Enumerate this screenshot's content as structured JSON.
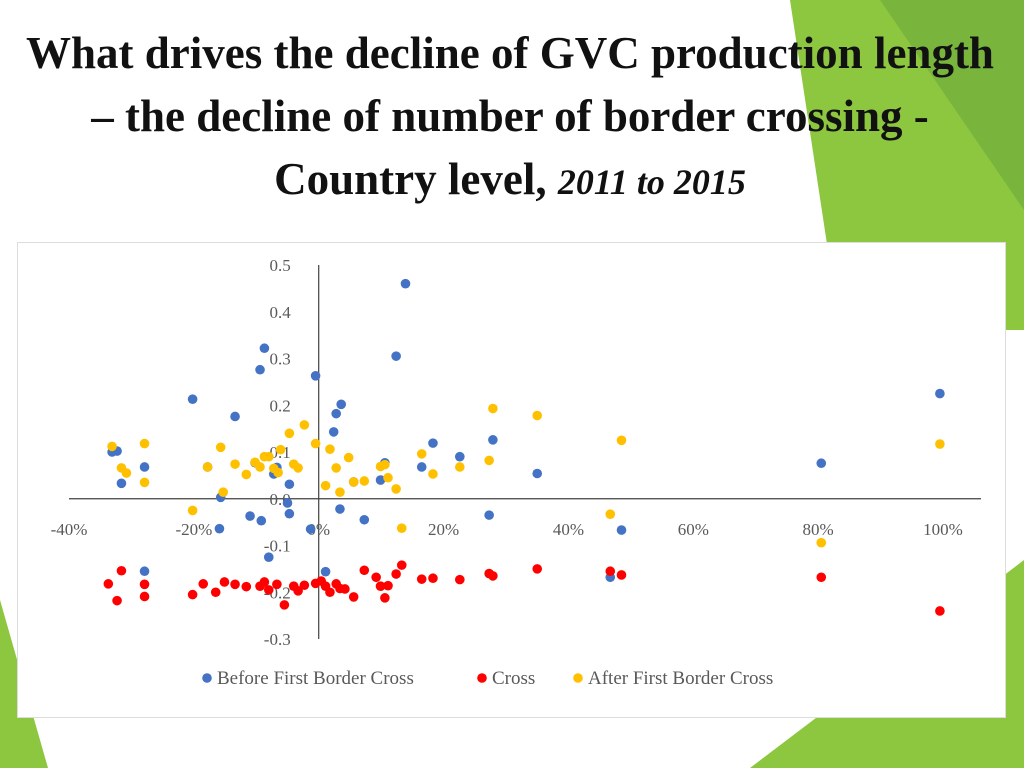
{
  "slide": {
    "title_main": "What drives the decline of GVC production length – the decline of number of border crossing -Country level, ",
    "title_years": "2011 to 2015",
    "theme_colors": [
      "#8dc63f",
      "#6aa73d",
      "#b8d96b"
    ]
  },
  "chart_data": {
    "type": "scatter",
    "title": "",
    "xlabel": "",
    "ylabel": "",
    "xlim": [
      -0.4,
      1.0
    ],
    "ylim": [
      -0.3,
      0.5
    ],
    "xticks": [
      -0.4,
      -0.2,
      0,
      0.2,
      0.4,
      0.6,
      0.8,
      1.0
    ],
    "xtick_labels": [
      "-40%",
      "-20%",
      "0%",
      "20%",
      "40%",
      "60%",
      "80%",
      "100%"
    ],
    "yticks": [
      -0.3,
      -0.2,
      -0.1,
      0.0,
      0.1,
      0.2,
      0.3,
      0.4,
      0.5
    ],
    "ytick_labels": [
      "-0.3",
      "-0.2",
      "-0.1",
      "0.0",
      "0.1",
      "0.2",
      "0.3",
      "0.4",
      "0.5"
    ],
    "grid": false,
    "legend_position": "bottom",
    "series": [
      {
        "name": "Before First Border Cross",
        "color": "#4472c4",
        "points": [
          [
            -0.331,
            0.1
          ],
          [
            -0.323,
            0.102
          ],
          [
            -0.316,
            0.033
          ],
          [
            -0.279,
            0.068
          ],
          [
            -0.279,
            -0.155
          ],
          [
            -0.202,
            0.213
          ],
          [
            -0.178,
            0.068
          ],
          [
            -0.157,
            0.003
          ],
          [
            -0.159,
            -0.064
          ],
          [
            -0.134,
            0.176
          ],
          [
            -0.11,
            -0.037
          ],
          [
            -0.102,
            0.077
          ],
          [
            -0.094,
            0.276
          ],
          [
            -0.092,
            -0.047
          ],
          [
            -0.087,
            0.322
          ],
          [
            -0.08,
            -0.125
          ],
          [
            -0.072,
            0.053
          ],
          [
            -0.067,
            0.067
          ],
          [
            -0.05,
            -0.009
          ],
          [
            -0.047,
            0.031
          ],
          [
            -0.047,
            -0.032
          ],
          [
            -0.013,
            -0.065
          ],
          [
            -0.005,
            0.263
          ],
          [
            0.011,
            -0.156
          ],
          [
            0.024,
            0.143
          ],
          [
            0.028,
            0.182
          ],
          [
            0.034,
            -0.022
          ],
          [
            0.036,
            0.202
          ],
          [
            0.056,
            0.036
          ],
          [
            0.073,
            -0.045
          ],
          [
            0.099,
            0.04
          ],
          [
            0.106,
            0.077
          ],
          [
            0.124,
            0.305
          ],
          [
            0.139,
            0.46
          ],
          [
            0.165,
            0.068
          ],
          [
            0.183,
            0.119
          ],
          [
            0.226,
            0.09
          ],
          [
            0.273,
            -0.035
          ],
          [
            0.279,
            0.126
          ],
          [
            0.35,
            0.054
          ],
          [
            0.467,
            -0.168
          ],
          [
            0.485,
            -0.067
          ],
          [
            0.805,
            0.076
          ],
          [
            0.995,
            0.225
          ]
        ]
      },
      {
        "name": "Cross",
        "color": "#ff0000",
        "points": [
          [
            -0.337,
            -0.182
          ],
          [
            -0.323,
            -0.218
          ],
          [
            -0.316,
            -0.154
          ],
          [
            -0.279,
            -0.209
          ],
          [
            -0.279,
            -0.183
          ],
          [
            -0.202,
            -0.205
          ],
          [
            -0.185,
            -0.182
          ],
          [
            -0.165,
            -0.2
          ],
          [
            -0.151,
            -0.178
          ],
          [
            -0.134,
            -0.183
          ],
          [
            -0.116,
            -0.188
          ],
          [
            -0.094,
            -0.187
          ],
          [
            -0.087,
            -0.178
          ],
          [
            -0.08,
            -0.195
          ],
          [
            -0.067,
            -0.183
          ],
          [
            -0.055,
            -0.227
          ],
          [
            -0.04,
            -0.187
          ],
          [
            -0.033,
            -0.197
          ],
          [
            -0.023,
            -0.185
          ],
          [
            -0.005,
            -0.181
          ],
          [
            0.004,
            -0.176
          ],
          [
            0.011,
            -0.187
          ],
          [
            0.018,
            -0.2
          ],
          [
            0.028,
            -0.182
          ],
          [
            0.034,
            -0.192
          ],
          [
            0.042,
            -0.193
          ],
          [
            0.056,
            -0.21
          ],
          [
            0.073,
            -0.153
          ],
          [
            0.092,
            -0.168
          ],
          [
            0.099,
            -0.187
          ],
          [
            0.106,
            -0.212
          ],
          [
            0.111,
            -0.186
          ],
          [
            0.124,
            -0.161
          ],
          [
            0.133,
            -0.142
          ],
          [
            0.165,
            -0.172
          ],
          [
            0.183,
            -0.17
          ],
          [
            0.226,
            -0.173
          ],
          [
            0.273,
            -0.16
          ],
          [
            0.279,
            -0.165
          ],
          [
            0.35,
            -0.15
          ],
          [
            0.467,
            -0.155
          ],
          [
            0.485,
            -0.163
          ],
          [
            0.805,
            -0.168
          ],
          [
            0.995,
            -0.24
          ]
        ]
      },
      {
        "name": "After First Border Cross",
        "color": "#ffc000",
        "points": [
          [
            -0.331,
            0.112
          ],
          [
            -0.316,
            0.066
          ],
          [
            -0.308,
            0.055
          ],
          [
            -0.279,
            0.118
          ],
          [
            -0.279,
            0.035
          ],
          [
            -0.202,
            -0.025
          ],
          [
            -0.178,
            0.068
          ],
          [
            -0.157,
            0.11
          ],
          [
            -0.153,
            0.014
          ],
          [
            -0.134,
            0.074
          ],
          [
            -0.116,
            0.052
          ],
          [
            -0.102,
            0.078
          ],
          [
            -0.094,
            0.068
          ],
          [
            -0.087,
            0.09
          ],
          [
            -0.08,
            0.09
          ],
          [
            -0.072,
            0.065
          ],
          [
            -0.065,
            0.056
          ],
          [
            -0.061,
            0.105
          ],
          [
            -0.047,
            0.14
          ],
          [
            -0.04,
            0.074
          ],
          [
            -0.033,
            0.066
          ],
          [
            -0.023,
            0.158
          ],
          [
            -0.005,
            0.118
          ],
          [
            0.011,
            0.028
          ],
          [
            0.018,
            0.106
          ],
          [
            0.028,
            0.066
          ],
          [
            0.034,
            0.014
          ],
          [
            0.048,
            0.088
          ],
          [
            0.056,
            0.036
          ],
          [
            0.073,
            0.038
          ],
          [
            0.099,
            0.069
          ],
          [
            0.106,
            0.073
          ],
          [
            0.111,
            0.045
          ],
          [
            0.124,
            0.021
          ],
          [
            0.133,
            -0.063
          ],
          [
            0.165,
            0.096
          ],
          [
            0.183,
            0.053
          ],
          [
            0.226,
            0.068
          ],
          [
            0.273,
            0.082
          ],
          [
            0.279,
            0.193
          ],
          [
            0.35,
            0.178
          ],
          [
            0.467,
            -0.033
          ],
          [
            0.485,
            0.125
          ],
          [
            0.805,
            -0.094
          ],
          [
            0.995,
            0.117
          ]
        ]
      }
    ]
  }
}
